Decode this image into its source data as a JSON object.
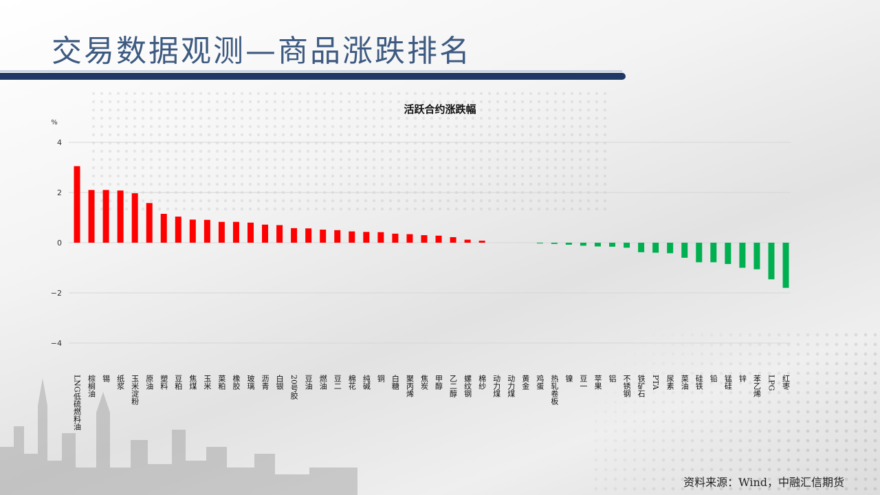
{
  "header": {
    "title": "交易数据观测—商品涨跌排名"
  },
  "footer": {
    "source": "资料来源：Wind，中融汇信期货"
  },
  "colors": {
    "up": "#ff0000",
    "down": "#00b050",
    "title": "#3d5a80",
    "rule": "#1f3864"
  },
  "chart_data": {
    "type": "bar",
    "title": "活跃合约涨跌幅",
    "ylabel": "%",
    "ylim": [
      -4,
      4
    ],
    "yticks": [
      4,
      2,
      0,
      -2,
      -4
    ],
    "grid": true,
    "categories": [
      "LNG低硫燃料油",
      "棕榈油",
      "锡",
      "纸浆",
      "玉米淀粉",
      "原油",
      "塑料",
      "豆粕",
      "焦煤",
      "玉米",
      "菜粕",
      "橡胶",
      "玻璃",
      "沥青",
      "白银",
      "20号胶",
      "豆油",
      "燃油",
      "豆二",
      "棉花",
      "纯碱",
      "铜",
      "白糖",
      "聚丙烯",
      "焦炭",
      "甲醇",
      "乙二醇",
      "螺纹钢",
      "棉纱",
      "动力煤",
      "动力煤",
      "黄金",
      "鸡蛋",
      "热轧卷板",
      "镍",
      "豆一",
      "苹果",
      "铝",
      "不锈钢",
      "铁矿石",
      "PTA",
      "尿素",
      "菜油",
      "硅铁",
      "铅",
      "锰硅",
      "锌",
      "苯乙烯",
      "LPG",
      "红枣"
    ],
    "values": [
      3.05,
      2.1,
      2.1,
      2.08,
      1.97,
      1.58,
      1.15,
      1.04,
      0.92,
      0.91,
      0.83,
      0.83,
      0.8,
      0.72,
      0.7,
      0.58,
      0.57,
      0.52,
      0.5,
      0.45,
      0.43,
      0.42,
      0.36,
      0.34,
      0.3,
      0.28,
      0.22,
      0.12,
      0.08,
      0,
      0,
      0,
      -0.03,
      -0.05,
      -0.08,
      -0.12,
      -0.15,
      -0.16,
      -0.2,
      -0.38,
      -0.4,
      -0.42,
      -0.6,
      -0.78,
      -0.78,
      -0.85,
      -1.0,
      -1.06,
      -1.46,
      -1.8
    ]
  }
}
